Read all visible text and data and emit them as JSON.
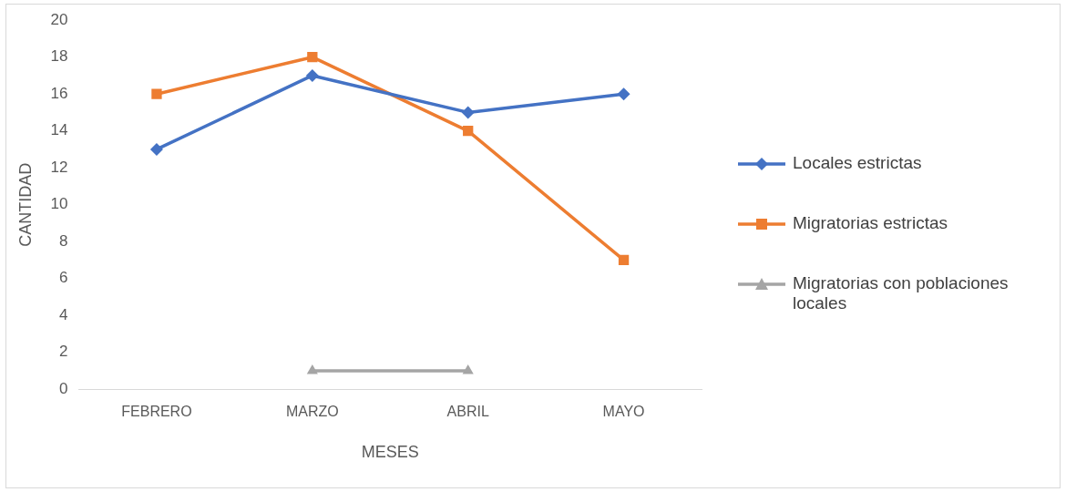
{
  "chart_data": {
    "type": "line",
    "xlabel": "MESES",
    "ylabel": "CANTIDAD",
    "categories": [
      "FEBRERO",
      "MARZO",
      "ABRIL",
      "MAYO"
    ],
    "series": [
      {
        "name": "Locales estrictas",
        "color": "#4472c4",
        "values": [
          13,
          17,
          15,
          16
        ],
        "marker": "diamond"
      },
      {
        "name": "Migratorias estrictas",
        "color": "#ed7d31",
        "values": [
          16,
          18,
          14,
          7
        ],
        "marker": "square"
      },
      {
        "name": "Migratorias con poblaciones locales",
        "color": "#a5a5a5",
        "values": [
          null,
          1,
          1,
          null
        ],
        "marker": "triangle"
      }
    ],
    "ylim": [
      0,
      20
    ],
    "yticks": [
      0,
      2,
      4,
      6,
      8,
      10,
      12,
      14,
      16,
      18,
      20
    ],
    "grid": false,
    "legend": "right",
    "line_style": "solid"
  }
}
